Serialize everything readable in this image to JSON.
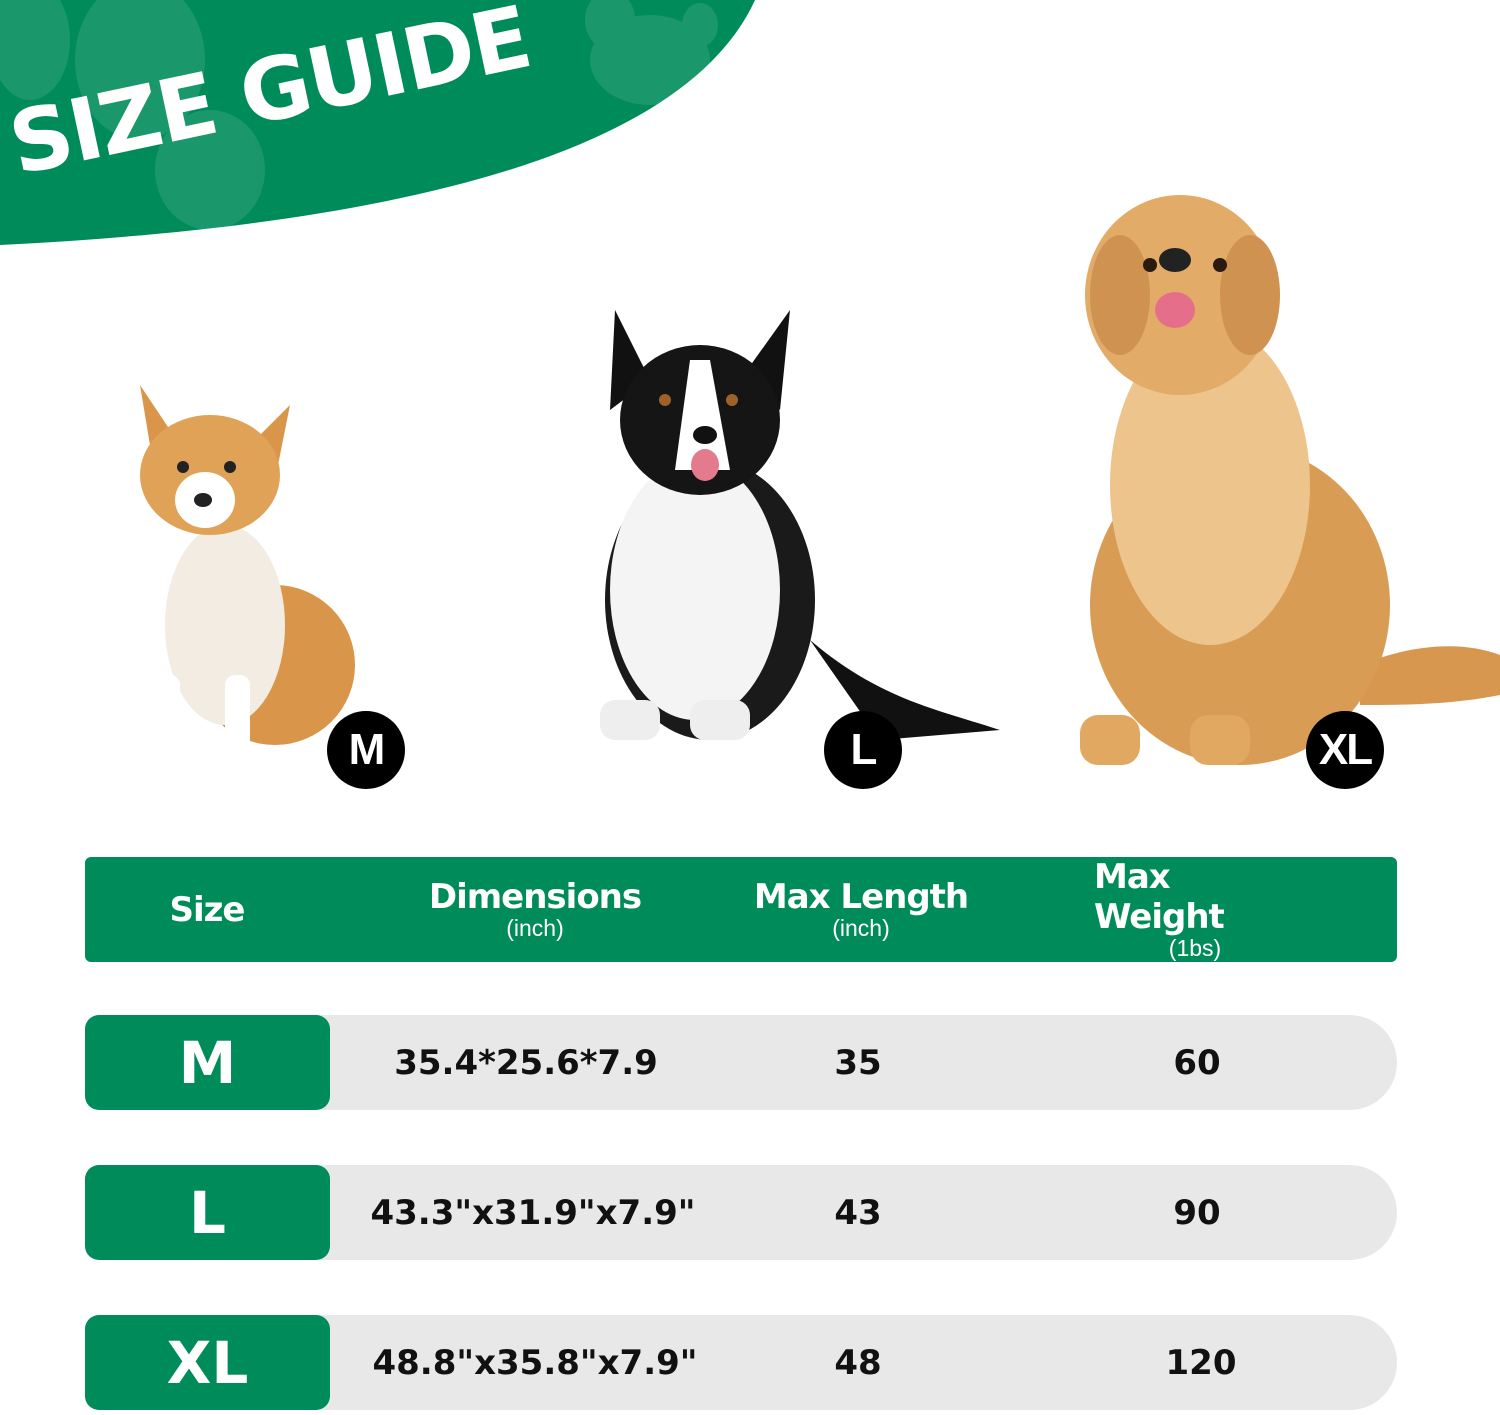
{
  "title": "SIZE GUIDE",
  "colors": {
    "brand_green": "#008c5a",
    "row_grey": "#e8e8e8",
    "badge": "#000000"
  },
  "dogs": [
    {
      "badge": "M",
      "breed_icon": "corgi"
    },
    {
      "badge": "L",
      "breed_icon": "border-collie"
    },
    {
      "badge": "XL",
      "breed_icon": "golden-retriever"
    }
  ],
  "table": {
    "headers": [
      {
        "label": "Size",
        "unit": ""
      },
      {
        "label": "Dimensions",
        "unit": "(inch)"
      },
      {
        "label": "Max Length",
        "unit": "(inch)"
      },
      {
        "label": "Max Weight",
        "unit": "(1bs)"
      }
    ],
    "rows": [
      {
        "size": "M",
        "dimensions": "35.4*25.6*7.9",
        "max_length": "35",
        "max_weight": "60"
      },
      {
        "size": "L",
        "dimensions": "43.3\"x31.9\"x7.9\"",
        "max_length": "43",
        "max_weight": "90"
      },
      {
        "size": "XL",
        "dimensions": "48.8\"x35.8\"x7.9\"",
        "max_length": "48",
        "max_weight": "120"
      }
    ]
  }
}
